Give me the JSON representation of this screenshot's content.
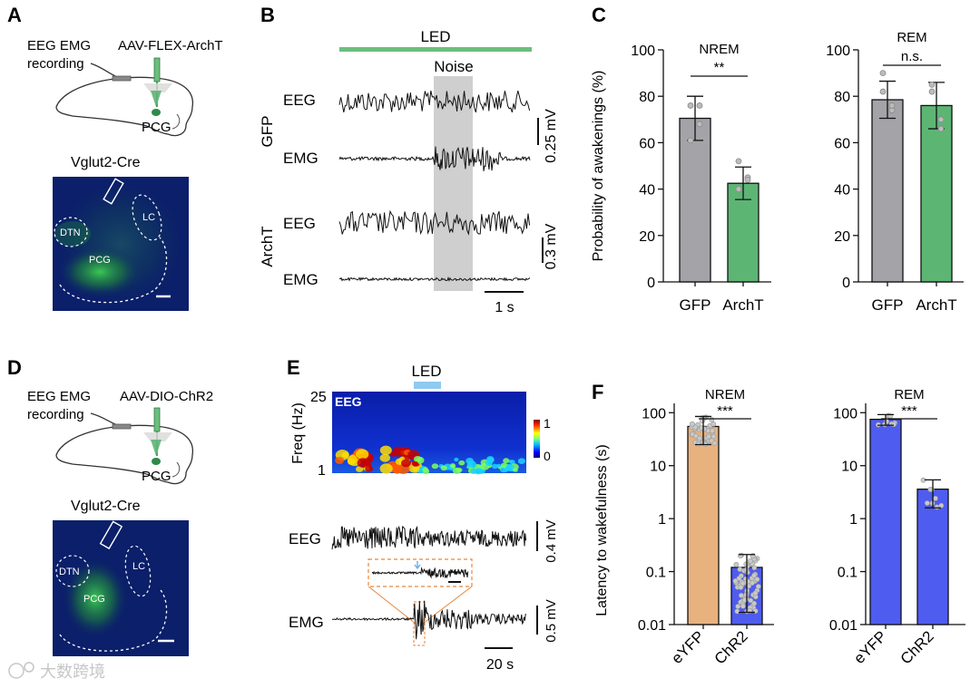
{
  "panel_labels": {
    "A": "A",
    "B": "B",
    "C": "C",
    "D": "D",
    "E": "E",
    "F": "F"
  },
  "panelA": {
    "recording": [
      "EEG EMG",
      "recording"
    ],
    "virus": "AAV-FLEX-ArchT",
    "region": "PCG",
    "mouse": "Vglut2-Cre",
    "histology": {
      "dtn": "DTN",
      "lc": "LC",
      "pcg": "PCG"
    }
  },
  "panelB": {
    "led": "LED",
    "noise": "Noise",
    "group1": "GFP",
    "group2": "ArchT",
    "eeg": "EEG",
    "emg": "EMG",
    "scale1": "0.25 mV",
    "scale2": "0.3 mV",
    "timescale": "1 s"
  },
  "panelC": {
    "ylabel": "Probability of awakenings (%)",
    "sig_nrem": "**",
    "sig_rem": "n.s."
  },
  "panelD": {
    "recording": [
      "EEG EMG",
      "recording"
    ],
    "virus": "AAV-DIO-ChR2",
    "region": "PCG",
    "mouse": "Vglut2-Cre",
    "histology": {
      "dtn": "DTN",
      "lc": "LC",
      "pcg": "PCG"
    }
  },
  "panelE": {
    "led": "LED",
    "freq_label": "Freq (Hz)",
    "freq_top": "25",
    "freq_bottom": "1",
    "spec_label": "EEG",
    "cbar_top": "1",
    "cbar_bottom": "0",
    "eeg": "EEG",
    "emg": "EMG",
    "scale1": "0.4 mV",
    "scale2": "0.5 mV",
    "timescale": "20 s"
  },
  "panelF": {
    "ylabel": "Latency to wakefulness (s)",
    "sig_nrem": "***",
    "sig_rem": "***"
  },
  "watermark": "大数跨境",
  "colors": {
    "gray_bar": "#a3a3a8",
    "green_bar": "#5db574",
    "orange_bar": "#e8b27e",
    "blue_bar": "#4e5cf0",
    "led_green": "#6bbf7d",
    "led_blue": "#8fcaf0",
    "noise_shade": "#cfcfcf"
  },
  "chart_data": [
    {
      "type": "bar",
      "title": "NREM",
      "categories": [
        "GFP",
        "ArchT"
      ],
      "values": [
        70.5,
        42.5
      ],
      "errors": [
        9.5,
        7
      ],
      "points": [
        [
          76,
          68,
          61,
          76
        ],
        [
          52,
          45,
          40,
          44
        ]
      ],
      "colors": [
        "#a3a3a8",
        "#5db574"
      ],
      "ylim": [
        0,
        100
      ],
      "yticks": [
        0,
        20,
        40,
        60,
        80,
        100
      ],
      "ylabel": "Probability of awakenings (%)",
      "significance": "**"
    },
    {
      "type": "bar",
      "title": "REM",
      "categories": [
        "GFP",
        "ArchT"
      ],
      "values": [
        78.5,
        76
      ],
      "errors": [
        8,
        10
      ],
      "points": [
        [
          90,
          74,
          82,
          76
        ],
        [
          85,
          66,
          82,
          70
        ]
      ],
      "colors": [
        "#a3a3a8",
        "#5db574"
      ],
      "ylim": [
        0,
        100
      ],
      "yticks": [
        0,
        20,
        40,
        60,
        80,
        100
      ],
      "ylabel": "",
      "significance": "n.s."
    },
    {
      "type": "bar",
      "title": "NREM",
      "scale": "log",
      "categories": [
        "eYFP",
        "ChR2"
      ],
      "values": [
        55,
        0.12
      ],
      "err_low": [
        25,
        0.017
      ],
      "err_high": [
        85,
        0.21
      ],
      "colors": [
        "#e8b27e",
        "#4e5cf0"
      ],
      "ylim": [
        0.01,
        150
      ],
      "yticks": [
        0.01,
        0.1,
        1,
        10,
        100
      ],
      "yticklabels": [
        "0.01",
        "0.1",
        "1",
        "10",
        "100"
      ],
      "ylabel": "Latency to wakefulness (s)",
      "significance": "***"
    },
    {
      "type": "bar",
      "title": "REM",
      "scale": "log",
      "categories": [
        "eYFP",
        "ChR2"
      ],
      "values": [
        75,
        3.6
      ],
      "err_low": [
        58,
        1.6
      ],
      "err_high": [
        92,
        5.4
      ],
      "colors": [
        "#4e5cf0",
        "#4e5cf0"
      ],
      "ylim": [
        0.01,
        150
      ],
      "yticks": [
        0.01,
        0.1,
        1,
        10,
        100
      ],
      "yticklabels": [
        "0.01",
        "0.1",
        "1",
        "10",
        "100"
      ],
      "ylabel": "",
      "significance": "***"
    }
  ]
}
